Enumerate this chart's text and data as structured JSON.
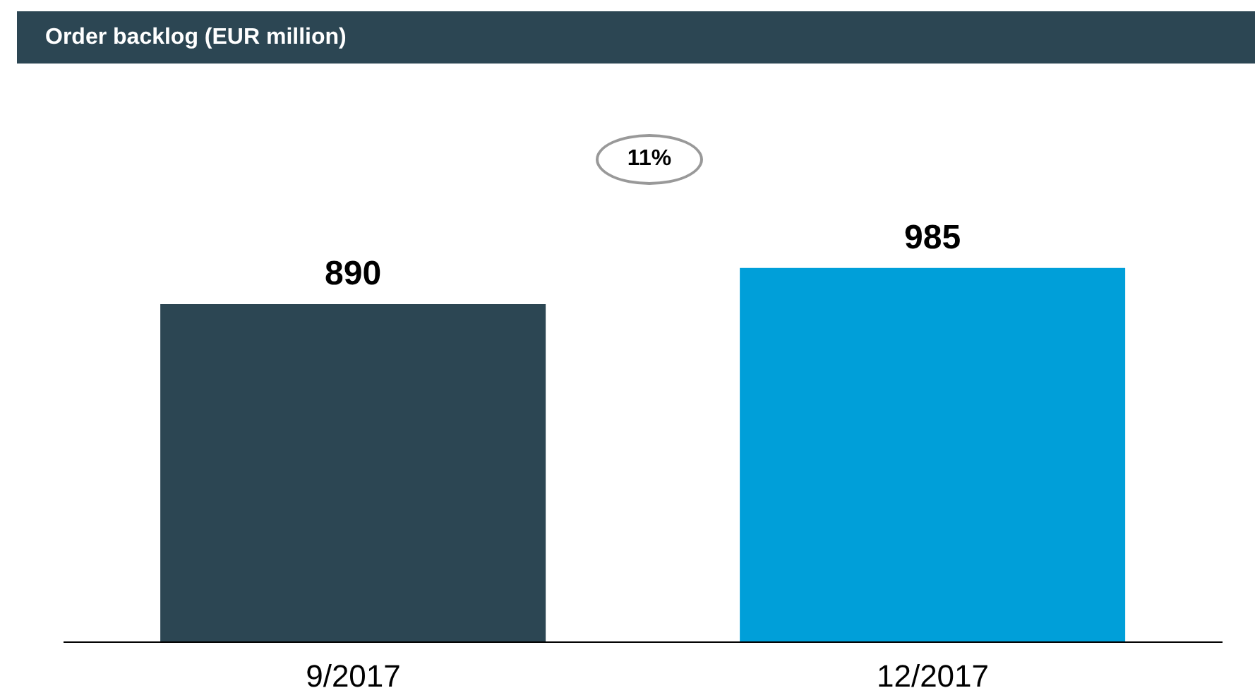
{
  "chart_data": {
    "type": "bar",
    "title": "Order backlog (EUR million)",
    "categories": [
      "9/2017",
      "12/2017"
    ],
    "values": [
      890,
      985
    ],
    "colors": [
      "#2c4653",
      "#009fd9"
    ],
    "data_labels": true,
    "annotations": [
      "11%"
    ]
  }
}
